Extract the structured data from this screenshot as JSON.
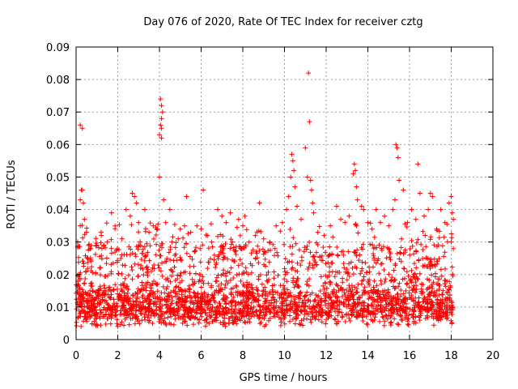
{
  "chart_data": {
    "type": "scatter",
    "title": "Day 076 of 2020, Rate Of TEC Index for receiver cztg",
    "xlabel": "GPS time / hours",
    "ylabel": "ROTI / TECUs",
    "xlim": [
      0,
      20
    ],
    "ylim": [
      0,
      0.09
    ],
    "x_ticks": [
      0,
      2,
      4,
      6,
      8,
      10,
      12,
      14,
      16,
      18,
      20
    ],
    "x_tick_labels": [
      "0",
      "2",
      "4",
      "6",
      "8",
      "10",
      "12",
      "14",
      "16",
      "18",
      "20"
    ],
    "y_ticks": [
      0,
      0.01,
      0.02,
      0.03,
      0.04,
      0.05,
      0.06,
      0.07,
      0.08,
      0.09
    ],
    "y_tick_labels": [
      "0",
      "0.01",
      "0.02",
      "0.03",
      "0.04",
      "0.05",
      "0.06",
      "0.07",
      "0.08",
      "0.09"
    ],
    "grid": true,
    "marker": "plus",
    "color": "#ff0000",
    "data_x_range": [
      0,
      18.1
    ],
    "series": [
      {
        "name": "ROTI",
        "points": [
          [
            0.2,
            0.066
          ],
          [
            0.3,
            0.065
          ],
          [
            0.25,
            0.046
          ],
          [
            0.3,
            0.046
          ],
          [
            0.2,
            0.043
          ],
          [
            0.35,
            0.042
          ],
          [
            0.4,
            0.037
          ],
          [
            0.2,
            0.035
          ],
          [
            0.5,
            0.033
          ],
          [
            0.7,
            0.028
          ],
          [
            1.0,
            0.029
          ],
          [
            1.2,
            0.033
          ],
          [
            1.5,
            0.03
          ],
          [
            1.7,
            0.039
          ],
          [
            2.2,
            0.031
          ],
          [
            2.4,
            0.04
          ],
          [
            2.6,
            0.038
          ],
          [
            2.7,
            0.045
          ],
          [
            2.8,
            0.044
          ],
          [
            2.9,
            0.042
          ],
          [
            3.0,
            0.036
          ],
          [
            3.3,
            0.04
          ],
          [
            3.5,
            0.033
          ],
          [
            3.7,
            0.035
          ],
          [
            3.9,
            0.034
          ],
          [
            4.0,
            0.05
          ],
          [
            4.05,
            0.074
          ],
          [
            4.1,
            0.072
          ],
          [
            4.15,
            0.07
          ],
          [
            4.1,
            0.068
          ],
          [
            4.05,
            0.066
          ],
          [
            4.1,
            0.065
          ],
          [
            4.0,
            0.063
          ],
          [
            4.1,
            0.062
          ],
          [
            4.2,
            0.043
          ],
          [
            4.3,
            0.036
          ],
          [
            4.5,
            0.04
          ],
          [
            4.6,
            0.03
          ],
          [
            4.9,
            0.031
          ],
          [
            5.0,
            0.034
          ],
          [
            5.2,
            0.035
          ],
          [
            5.3,
            0.044
          ],
          [
            5.5,
            0.033
          ],
          [
            5.8,
            0.035
          ],
          [
            6.0,
            0.034
          ],
          [
            6.1,
            0.046
          ],
          [
            6.3,
            0.032
          ],
          [
            6.5,
            0.03
          ],
          [
            6.8,
            0.04
          ],
          [
            7.0,
            0.038
          ],
          [
            7.2,
            0.036
          ],
          [
            7.4,
            0.039
          ],
          [
            7.5,
            0.03
          ],
          [
            7.8,
            0.037
          ],
          [
            8.0,
            0.035
          ],
          [
            8.1,
            0.038
          ],
          [
            8.3,
            0.03
          ],
          [
            8.6,
            0.032
          ],
          [
            8.8,
            0.042
          ],
          [
            9.0,
            0.031
          ],
          [
            9.3,
            0.03
          ],
          [
            9.6,
            0.035
          ],
          [
            9.9,
            0.036
          ],
          [
            10.1,
            0.04
          ],
          [
            10.2,
            0.044
          ],
          [
            10.3,
            0.05
          ],
          [
            10.35,
            0.057
          ],
          [
            10.4,
            0.055
          ],
          [
            10.45,
            0.052
          ],
          [
            10.5,
            0.047
          ],
          [
            10.6,
            0.041
          ],
          [
            10.8,
            0.037
          ],
          [
            11.0,
            0.059
          ],
          [
            11.1,
            0.05
          ],
          [
            11.15,
            0.082
          ],
          [
            11.2,
            0.067
          ],
          [
            11.25,
            0.049
          ],
          [
            11.3,
            0.046
          ],
          [
            11.35,
            0.042
          ],
          [
            11.4,
            0.039
          ],
          [
            11.6,
            0.033
          ],
          [
            11.9,
            0.032
          ],
          [
            12.2,
            0.035
          ],
          [
            12.5,
            0.041
          ],
          [
            12.7,
            0.037
          ],
          [
            12.9,
            0.036
          ],
          [
            13.1,
            0.038
          ],
          [
            13.3,
            0.051
          ],
          [
            13.35,
            0.054
          ],
          [
            13.4,
            0.052
          ],
          [
            13.45,
            0.047
          ],
          [
            13.5,
            0.043
          ],
          [
            13.7,
            0.041
          ],
          [
            13.8,
            0.04
          ],
          [
            14.0,
            0.036
          ],
          [
            14.2,
            0.034
          ],
          [
            14.4,
            0.04
          ],
          [
            14.6,
            0.036
          ],
          [
            14.8,
            0.038
          ],
          [
            15.0,
            0.035
          ],
          [
            15.2,
            0.04
          ],
          [
            15.3,
            0.043
          ],
          [
            15.35,
            0.06
          ],
          [
            15.4,
            0.059
          ],
          [
            15.45,
            0.056
          ],
          [
            15.5,
            0.049
          ],
          [
            15.7,
            0.046
          ],
          [
            15.9,
            0.036
          ],
          [
            16.1,
            0.04
          ],
          [
            16.3,
            0.037
          ],
          [
            16.4,
            0.054
          ],
          [
            16.5,
            0.045
          ],
          [
            16.7,
            0.038
          ],
          [
            16.9,
            0.04
          ],
          [
            17.0,
            0.045
          ],
          [
            17.1,
            0.044
          ],
          [
            17.3,
            0.034
          ],
          [
            17.5,
            0.04
          ],
          [
            17.7,
            0.036
          ],
          [
            17.9,
            0.042
          ],
          [
            18.0,
            0.044
          ],
          [
            18.05,
            0.039
          ],
          [
            18.1,
            0.037
          ],
          [
            18.0,
            0.03
          ],
          [
            18.1,
            0.028
          ]
        ]
      }
    ],
    "dense_band": {
      "note": "Dense cluster of low ROTI values across the whole day",
      "x_range": [
        0,
        18.1
      ],
      "typical_low": 0.004,
      "typical_high": 0.025,
      "median": 0.01
    }
  }
}
